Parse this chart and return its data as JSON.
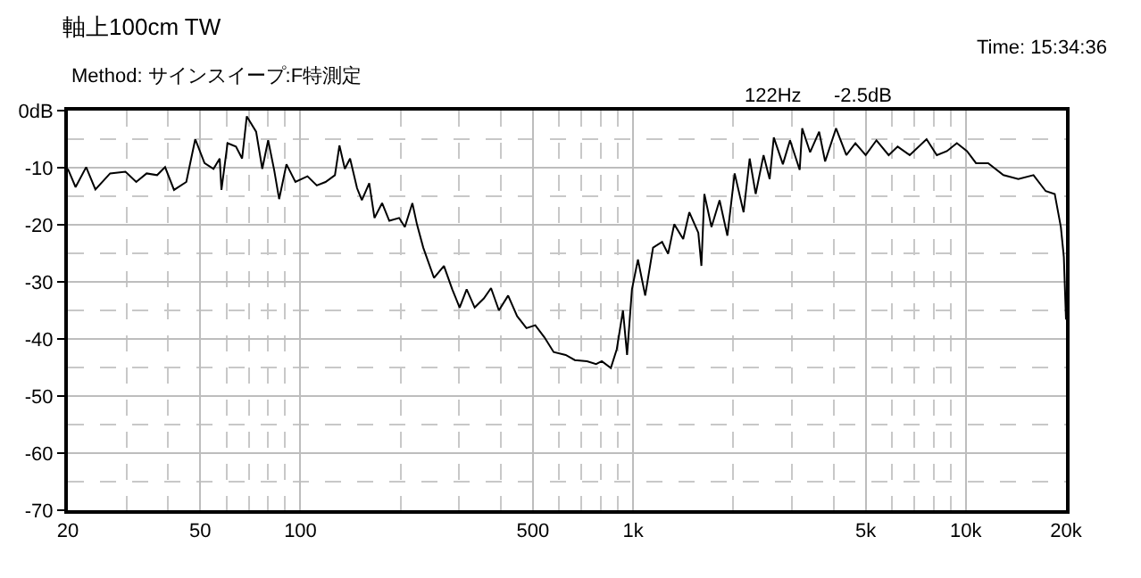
{
  "chart_data": {
    "type": "line",
    "title": "軸上100cm TW",
    "annotations": [
      "Method: サインスイープ:F特測定",
      "Time: 15:34:36",
      "122Hz",
      "-2.5dB"
    ],
    "log": "x",
    "grid": true,
    "marker": "none",
    "line_style": "solid",
    "xlim": [
      20,
      20000
    ],
    "xticks": [
      20,
      50,
      100,
      500,
      {
        "value": 1000,
        "label": "1k"
      },
      {
        "value": 5000,
        "label": "5k"
      },
      {
        "value": 10000,
        "label": "10k"
      },
      {
        "value": 20000,
        "label": "20k"
      }
    ],
    "ylim": [
      -70,
      0
    ],
    "yticks": [
      {
        "value": 0,
        "label": "0dB"
      },
      -10,
      -20,
      -30,
      -40,
      -50,
      -60,
      -70
    ],
    "series": [
      {
        "color": "#000000",
        "x": [
          20,
          21.1,
          22.7,
          24.2,
          26.8,
          29.8,
          32.1,
          34.5,
          37.1,
          39.2,
          41.7,
          45.4,
          48.3,
          51.5,
          54.8,
          57.2,
          57.9,
          60.4,
          64,
          66.8,
          69,
          73.6,
          76.8,
          80,
          83.4,
          86.3,
          90.8,
          96.6,
          105,
          112,
          119,
          127,
          131,
          136,
          141,
          148,
          153,
          161,
          167,
          176,
          185,
          198,
          206,
          217,
          224,
          234,
          252,
          270,
          286,
          301,
          316,
          334,
          356,
          374,
          395,
          421,
          448,
          478,
          508,
          541,
          577,
          627,
          668,
          727,
          774,
          805,
          857,
          893,
          932,
          959,
          992,
          1034,
          1087,
          1148,
          1222,
          1274,
          1329,
          1414,
          1475,
          1570,
          1604,
          1637,
          1720,
          1819,
          1920,
          2019,
          2148,
          2240,
          2335,
          2466,
          2572,
          2647,
          2819,
          2962,
          3167,
          3222,
          3404,
          3623,
          3776,
          4073,
          4374,
          4656,
          5000,
          5387,
          5862,
          6238,
          6779,
          7620,
          8180,
          8770,
          9396,
          10080,
          10730,
          11670,
          12970,
          14380,
          15970,
          17380,
          18500,
          19300,
          19700,
          20000
        ],
        "values": [
          -10.2,
          -13.4,
          -9.9,
          -13.8,
          -11.0,
          -10.7,
          -12.5,
          -11.0,
          -11.3,
          -9.9,
          -13.9,
          -12.5,
          -5.0,
          -9.2,
          -10.2,
          -8.4,
          -13.9,
          -5.7,
          -6.3,
          -8.4,
          -1.0,
          -3.7,
          -10.2,
          -5.2,
          -10.4,
          -15.5,
          -9.4,
          -12.5,
          -11.5,
          -13.1,
          -12.5,
          -11.3,
          -6.1,
          -10.2,
          -8.4,
          -13.6,
          -15.7,
          -12.7,
          -18.8,
          -16.2,
          -19.3,
          -18.8,
          -20.4,
          -16.2,
          -19.9,
          -24.0,
          -29.3,
          -27.2,
          -31.3,
          -34.5,
          -31.3,
          -34.5,
          -32.9,
          -31.1,
          -35.0,
          -32.4,
          -36.0,
          -38.1,
          -37.6,
          -39.7,
          -42.3,
          -42.8,
          -43.7,
          -43.9,
          -44.4,
          -43.9,
          -45.1,
          -41.8,
          -35.0,
          -42.8,
          -31.3,
          -26.1,
          -32.4,
          -24.0,
          -23.0,
          -25.1,
          -19.9,
          -22.5,
          -17.8,
          -21.4,
          -27.2,
          -14.6,
          -20.4,
          -15.7,
          -21.9,
          -11.0,
          -17.8,
          -8.4,
          -14.6,
          -7.8,
          -12.0,
          -4.7,
          -9.4,
          -5.2,
          -10.4,
          -3.1,
          -7.3,
          -3.7,
          -8.9,
          -3.1,
          -7.8,
          -5.7,
          -7.8,
          -5.2,
          -7.8,
          -6.3,
          -7.8,
          -5.0,
          -7.8,
          -7.1,
          -5.7,
          -7.1,
          -9.2,
          -9.2,
          -11.3,
          -12.0,
          -11.3,
          -14.1,
          -14.6,
          -20.4,
          -25.6,
          -36.6
        ]
      }
    ]
  }
}
